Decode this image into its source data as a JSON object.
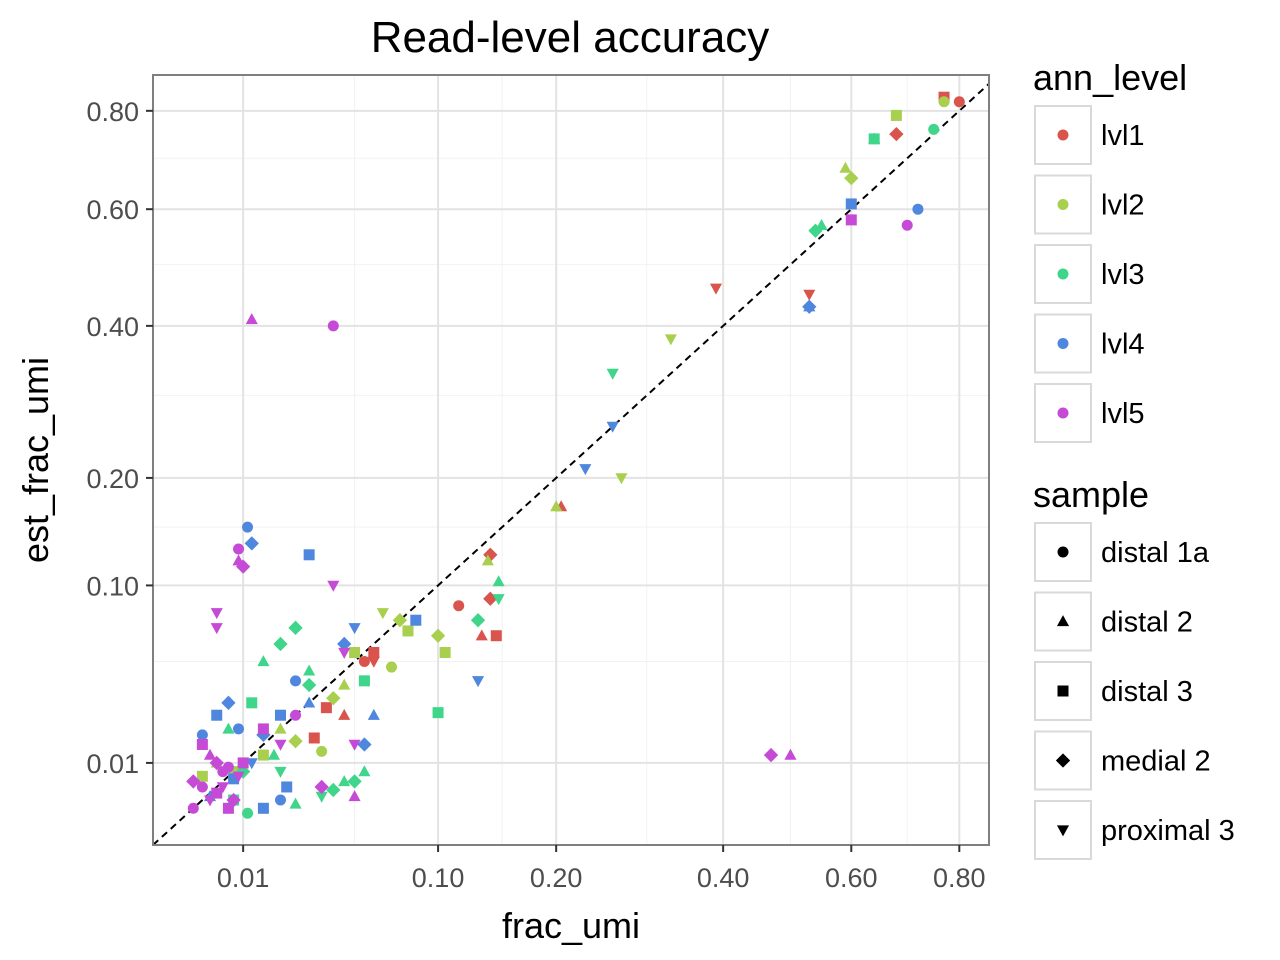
{
  "chart_data": {
    "type": "scatter",
    "title": "Read-level accuracy",
    "xlabel": "frac_umi",
    "ylabel": "est_frac_umi",
    "scale": "sqrt",
    "xlim": [
      0,
      0.86
    ],
    "ylim": [
      0,
      0.88
    ],
    "x_ticks": [
      {
        "value": 0.01,
        "label": "0.01"
      },
      {
        "value": 0.1,
        "label": "0.10"
      },
      {
        "value": 0.2,
        "label": "0.20"
      },
      {
        "value": 0.4,
        "label": "0.40"
      },
      {
        "value": 0.6,
        "label": "0.60"
      },
      {
        "value": 0.8,
        "label": "0.80"
      }
    ],
    "y_ticks": [
      {
        "value": 0.01,
        "label": "0.01"
      },
      {
        "value": 0.1,
        "label": "0.10"
      },
      {
        "value": 0.2,
        "label": "0.20"
      },
      {
        "value": 0.4,
        "label": "0.40"
      },
      {
        "value": 0.6,
        "label": "0.60"
      },
      {
        "value": 0.8,
        "label": "0.80"
      }
    ],
    "minor_ticks": [
      0.05,
      0.15,
      0.3,
      0.5,
      0.7
    ],
    "grid": true,
    "reference_line": "y = x (dashed)",
    "legend_position": "right",
    "legends": {
      "color": {
        "title": "ann_level",
        "entries": [
          {
            "label": "lvl1",
            "color": "#D9544D"
          },
          {
            "label": "lvl2",
            "color": "#A8D04E"
          },
          {
            "label": "lvl3",
            "color": "#3FD58A"
          },
          {
            "label": "lvl4",
            "color": "#4F86DE"
          },
          {
            "label": "lvl5",
            "color": "#C54AD6"
          }
        ]
      },
      "shape": {
        "title": "sample",
        "entries": [
          {
            "label": "distal 1a",
            "shape": "circle"
          },
          {
            "label": "distal 2",
            "shape": "triangle"
          },
          {
            "label": "distal 3",
            "shape": "square"
          },
          {
            "label": "medial 2",
            "shape": "diamond"
          },
          {
            "label": "proximal 3",
            "shape": "triangle-down"
          }
        ]
      }
    },
    "points": [
      [
        0.8,
        0.82,
        1,
        "circle"
      ],
      [
        0.77,
        0.83,
        1,
        "square"
      ],
      [
        0.68,
        0.75,
        1,
        "diamond"
      ],
      [
        0.64,
        0.74,
        1,
        "triangle"
      ],
      [
        0.39,
        0.46,
        1,
        "triangle-down"
      ],
      [
        0.53,
        0.45,
        1,
        "triangle-down"
      ],
      [
        0.205,
        0.17,
        1,
        "triangle"
      ],
      [
        0.14,
        0.125,
        1,
        "diamond"
      ],
      [
        0.115,
        0.085,
        1,
        "circle"
      ],
      [
        0.14,
        0.09,
        1,
        "diamond"
      ],
      [
        0.133,
        0.065,
        1,
        "triangle"
      ],
      [
        0.145,
        0.065,
        1,
        "square"
      ],
      [
        0.06,
        0.055,
        1,
        "square"
      ],
      [
        0.06,
        0.05,
        1,
        "triangle-down"
      ],
      [
        0.037,
        0.028,
        1,
        "square"
      ],
      [
        0.055,
        0.05,
        1,
        "circle"
      ],
      [
        0.032,
        0.017,
        1,
        "square"
      ],
      [
        0.045,
        0.025,
        1,
        "triangle"
      ],
      [
        0.77,
        0.82,
        2,
        "circle"
      ],
      [
        0.68,
        0.79,
        2,
        "square"
      ],
      [
        0.59,
        0.68,
        2,
        "triangle"
      ],
      [
        0.6,
        0.66,
        2,
        "diamond"
      ],
      [
        0.33,
        0.38,
        2,
        "triangle-down"
      ],
      [
        0.27,
        0.2,
        2,
        "triangle-down"
      ],
      [
        0.2,
        0.17,
        2,
        "triangle"
      ],
      [
        0.138,
        0.12,
        2,
        "triangle"
      ],
      [
        0.075,
        0.075,
        2,
        "diamond"
      ],
      [
        0.1,
        0.065,
        2,
        "diamond"
      ],
      [
        0.07,
        0.047,
        2,
        "circle"
      ],
      [
        0.065,
        0.08,
        2,
        "triangle-down"
      ],
      [
        0.08,
        0.068,
        2,
        "square"
      ],
      [
        0.105,
        0.055,
        2,
        "square"
      ],
      [
        0.05,
        0.055,
        2,
        "square"
      ],
      [
        0.04,
        0.032,
        2,
        "diamond"
      ],
      [
        0.035,
        0.013,
        2,
        "circle"
      ],
      [
        0.045,
        0.038,
        2,
        "triangle"
      ],
      [
        0.02,
        0.02,
        2,
        "triangle"
      ],
      [
        0.015,
        0.012,
        2,
        "square"
      ],
      [
        0.008,
        0.008,
        2,
        "square"
      ],
      [
        0.003,
        0.007,
        2,
        "square"
      ],
      [
        0.025,
        0.016,
        2,
        "diamond"
      ],
      [
        0.005,
        0.01,
        2,
        "triangle"
      ],
      [
        0.75,
        0.76,
        3,
        "circle"
      ],
      [
        0.64,
        0.74,
        3,
        "square"
      ],
      [
        0.55,
        0.57,
        3,
        "triangle"
      ],
      [
        0.54,
        0.56,
        3,
        "diamond"
      ],
      [
        0.26,
        0.33,
        3,
        "triangle-down"
      ],
      [
        0.147,
        0.103,
        3,
        "triangle"
      ],
      [
        0.147,
        0.09,
        3,
        "triangle-down"
      ],
      [
        0.13,
        0.075,
        3,
        "diamond"
      ],
      [
        0.1,
        0.026,
        3,
        "square"
      ],
      [
        0.055,
        0.04,
        3,
        "square"
      ],
      [
        0.03,
        0.045,
        3,
        "triangle"
      ],
      [
        0.025,
        0.07,
        3,
        "diamond"
      ],
      [
        0.02,
        0.06,
        3,
        "diamond"
      ],
      [
        0.015,
        0.05,
        3,
        "triangle"
      ],
      [
        0.03,
        0.038,
        3,
        "diamond"
      ],
      [
        0.045,
        0.006,
        3,
        "triangle"
      ],
      [
        0.04,
        0.0045,
        3,
        "diamond"
      ],
      [
        0.05,
        0.006,
        3,
        "diamond"
      ],
      [
        0.055,
        0.008,
        3,
        "triangle"
      ],
      [
        0.025,
        0.0025,
        3,
        "triangle"
      ],
      [
        0.035,
        0.0035,
        3,
        "triangle-down"
      ],
      [
        0.018,
        0.012,
        3,
        "triangle"
      ],
      [
        0.012,
        0.03,
        3,
        "square"
      ],
      [
        0.01,
        0.008,
        3,
        "diamond"
      ],
      [
        0.02,
        0.008,
        3,
        "triangle-down"
      ],
      [
        0.008,
        0.003,
        3,
        "square"
      ],
      [
        0.011,
        0.0015,
        3,
        "circle"
      ],
      [
        0.007,
        0.02,
        3,
        "triangle"
      ],
      [
        0.72,
        0.6,
        4,
        "circle"
      ],
      [
        0.6,
        0.61,
        4,
        "square"
      ],
      [
        0.53,
        0.43,
        4,
        "diamond"
      ],
      [
        0.53,
        0.43,
        4,
        "triangle"
      ],
      [
        0.26,
        0.26,
        4,
        "triangle-down"
      ],
      [
        0.23,
        0.21,
        4,
        "triangle-down"
      ],
      [
        0.13,
        0.04,
        4,
        "triangle-down"
      ],
      [
        0.085,
        0.075,
        4,
        "square"
      ],
      [
        0.05,
        0.07,
        4,
        "triangle-down"
      ],
      [
        0.045,
        0.06,
        4,
        "diamond"
      ],
      [
        0.06,
        0.025,
        4,
        "triangle"
      ],
      [
        0.055,
        0.015,
        4,
        "diamond"
      ],
      [
        0.011,
        0.15,
        4,
        "circle"
      ],
      [
        0.012,
        0.135,
        4,
        "diamond"
      ],
      [
        0.03,
        0.125,
        4,
        "square"
      ],
      [
        0.025,
        0.04,
        4,
        "circle"
      ],
      [
        0.03,
        0.03,
        4,
        "triangle"
      ],
      [
        0.02,
        0.025,
        4,
        "square"
      ],
      [
        0.015,
        0.018,
        4,
        "diamond"
      ],
      [
        0.02,
        0.003,
        4,
        "circle"
      ],
      [
        0.015,
        0.002,
        4,
        "square"
      ],
      [
        0.022,
        0.005,
        4,
        "square"
      ],
      [
        0.009,
        0.02,
        4,
        "circle"
      ],
      [
        0.007,
        0.03,
        4,
        "diamond"
      ],
      [
        0.005,
        0.025,
        4,
        "square"
      ],
      [
        0.003,
        0.018,
        4,
        "circle"
      ],
      [
        0.012,
        0.01,
        4,
        "triangle-down"
      ],
      [
        0.008,
        0.0065,
        4,
        "square"
      ],
      [
        0.004,
        0.0035,
        4,
        "triangle"
      ],
      [
        0.7,
        0.57,
        5,
        "circle"
      ],
      [
        0.6,
        0.58,
        5,
        "square"
      ],
      [
        0.47,
        0.012,
        5,
        "diamond"
      ],
      [
        0.5,
        0.012,
        5,
        "triangle"
      ],
      [
        0.04,
        0.4,
        5,
        "circle"
      ],
      [
        0.012,
        0.41,
        5,
        "triangle"
      ],
      [
        0.009,
        0.13,
        5,
        "circle"
      ],
      [
        0.01,
        0.115,
        5,
        "diamond"
      ],
      [
        0.009,
        0.12,
        5,
        "triangle"
      ],
      [
        0.005,
        0.08,
        5,
        "triangle-down"
      ],
      [
        0.005,
        0.07,
        5,
        "triangle-down"
      ],
      [
        0.04,
        0.1,
        5,
        "triangle-down"
      ],
      [
        0.045,
        0.055,
        5,
        "triangle-down"
      ],
      [
        0.05,
        0.015,
        5,
        "triangle-down"
      ],
      [
        0.035,
        0.005,
        5,
        "diamond"
      ],
      [
        0.05,
        0.0035,
        5,
        "triangle"
      ],
      [
        0.025,
        0.025,
        5,
        "circle"
      ],
      [
        0.015,
        0.02,
        5,
        "square"
      ],
      [
        0.02,
        0.015,
        5,
        "triangle-down"
      ],
      [
        0.01,
        0.01,
        5,
        "square"
      ],
      [
        0.006,
        0.008,
        5,
        "circle"
      ],
      [
        0.005,
        0.01,
        5,
        "diamond"
      ],
      [
        0.003,
        0.005,
        5,
        "circle"
      ],
      [
        0.004,
        0.003,
        5,
        "triangle-down"
      ],
      [
        0.007,
        0.002,
        5,
        "square"
      ],
      [
        0.002,
        0.002,
        5,
        "circle"
      ],
      [
        0.003,
        0.015,
        5,
        "square"
      ],
      [
        0.004,
        0.012,
        5,
        "triangle"
      ],
      [
        0.006,
        0.005,
        5,
        "triangle-down"
      ],
      [
        0.008,
        0.003,
        5,
        "diamond"
      ],
      [
        0.009,
        0.007,
        5,
        "triangle-down"
      ],
      [
        0.002,
        0.006,
        5,
        "diamond"
      ],
      [
        0.005,
        0.004,
        5,
        "square"
      ],
      [
        0.007,
        0.009,
        5,
        "circle"
      ]
    ]
  }
}
